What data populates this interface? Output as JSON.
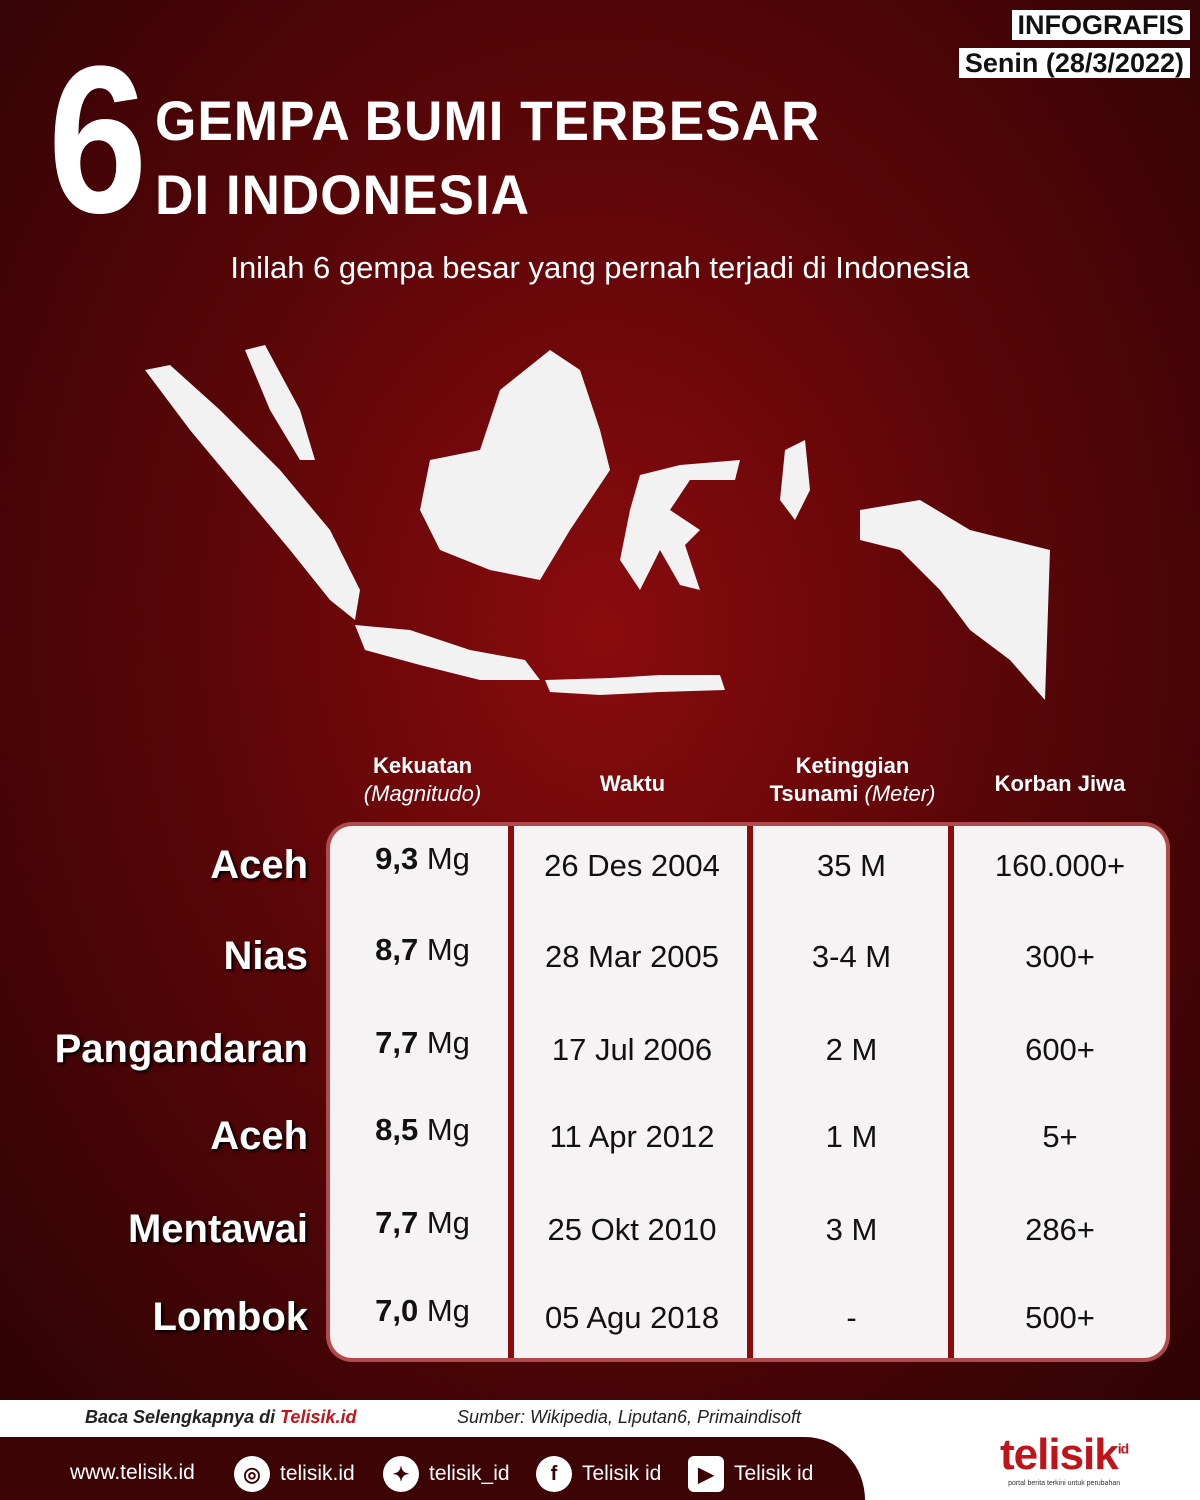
{
  "badge": {
    "label": "INFOGRAFIS",
    "date": "Senin (28/3/2022)"
  },
  "title": {
    "number": "6",
    "line1": "GEMPA BUMI TERBESAR",
    "line2": "DI INDONESIA"
  },
  "subtitle": "Inilah 6 gempa besar yang pernah terjadi di Indonesia",
  "columns": [
    {
      "l1": "Kekuatan",
      "l2": "(Magnitudo)"
    },
    {
      "l1": "Waktu",
      "l2": ""
    },
    {
      "l1": "Ketinggian",
      "l2a": "Tsunami",
      "l2": "(Meter)"
    },
    {
      "l1": "Korban Jiwa",
      "l2": ""
    }
  ],
  "rows": [
    {
      "location": "Aceh",
      "mag": "9,3",
      "unit": "Mg",
      "date": "26 Des 2004",
      "tsunami": "35 M",
      "victims": "160.000+"
    },
    {
      "location": "Nias",
      "mag": "8,7",
      "unit": "Mg",
      "date": "28 Mar 2005",
      "tsunami": "3-4 M",
      "victims": "300+"
    },
    {
      "location": "Pangandaran",
      "mag": "7,7",
      "unit": "Mg",
      "date": "17 Jul 2006",
      "tsunami": "2 M",
      "victims": "600+"
    },
    {
      "location": "Aceh",
      "mag": "8,5",
      "unit": "Mg",
      "date": "11 Apr 2012",
      "tsunami": "1 M",
      "victims": "5+"
    },
    {
      "location": "Mentawai",
      "mag": "7,7",
      "unit": "Mg",
      "date": "25 Okt 2010",
      "tsunami": "3 M",
      "victims": "286+"
    },
    {
      "location": "Lombok",
      "mag": "7,0",
      "unit": "Mg",
      "date": "05 Agu 2018",
      "tsunami": "-",
      "victims": "500+"
    }
  ],
  "footer": {
    "read_more": "Baca Selengkapnya di",
    "read_more_link": "Telisik.id",
    "source": "Sumber: Wikipedia, Liputan6, Primaindisoft",
    "website": "www.telisik.id",
    "instagram": "telisik.id",
    "twitter": "telisik_id",
    "facebook": "Telisik id",
    "youtube": "Telisik id"
  },
  "logo": {
    "text": "telisik",
    "suffix": "id",
    "tagline": "portal berita terkini untuk perubahan"
  },
  "colors": {
    "accent": "#8b0a0c",
    "brand": "#c0141a"
  }
}
